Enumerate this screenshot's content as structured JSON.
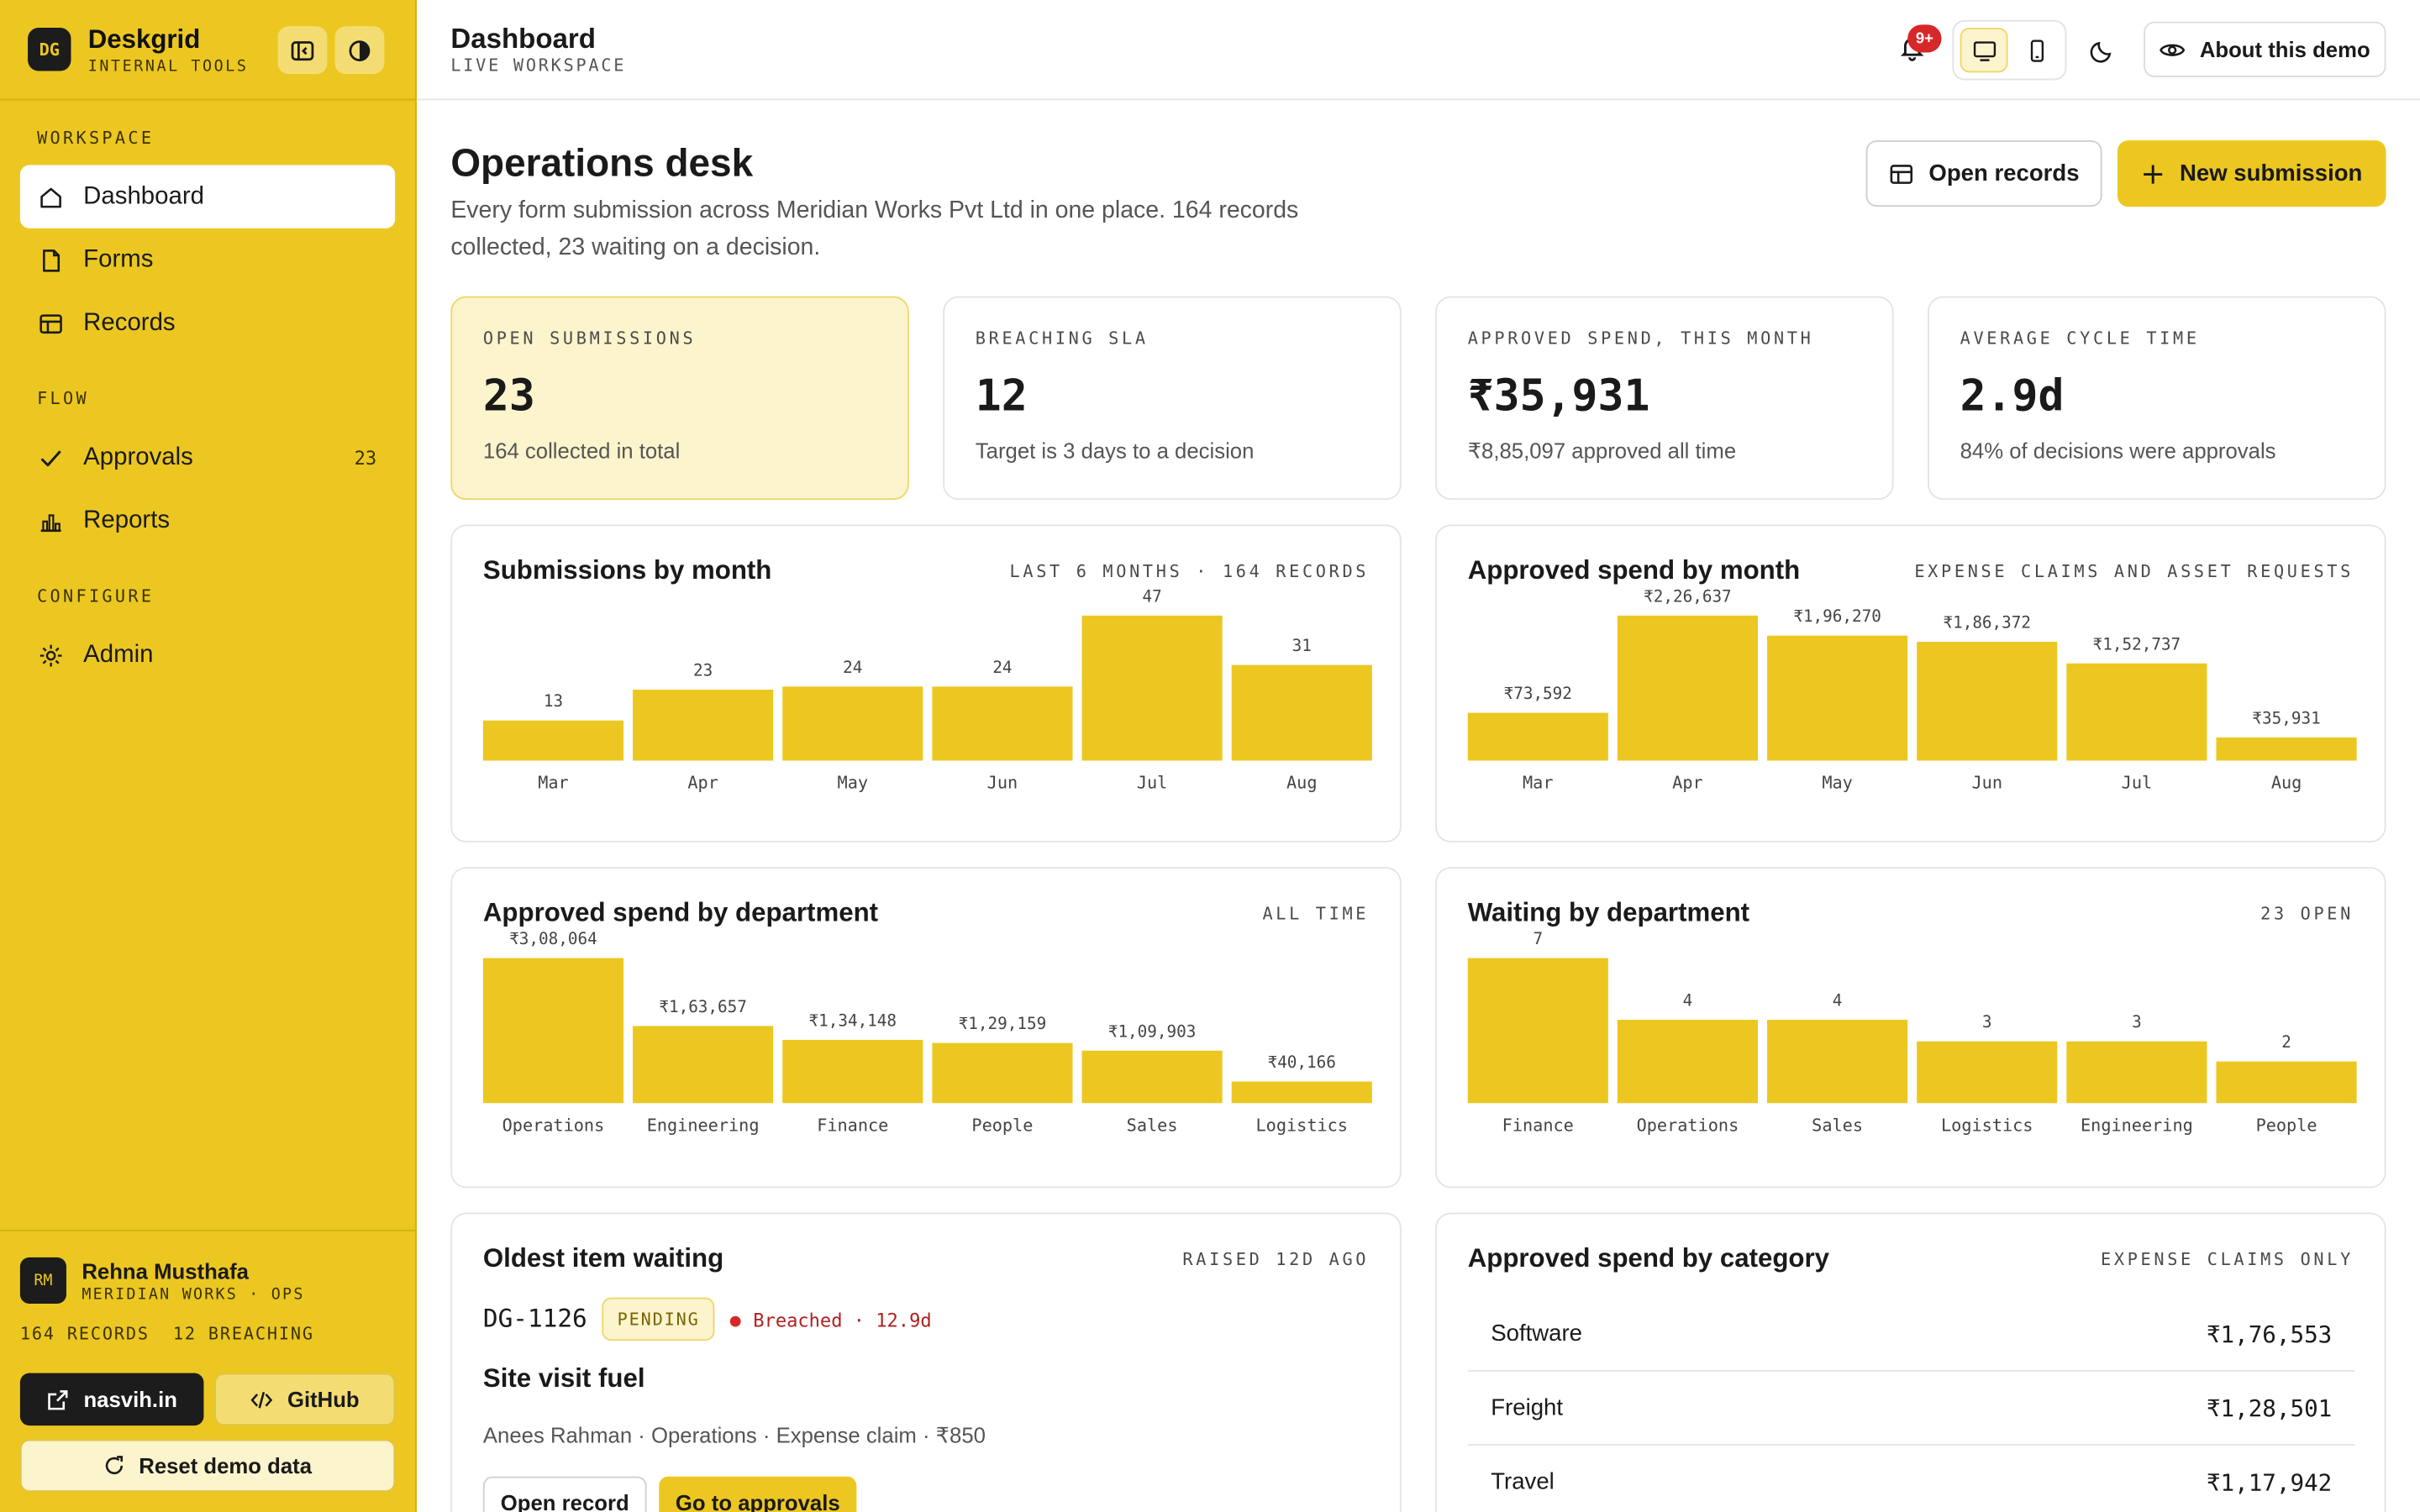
{
  "brand": {
    "logo": "DG",
    "name": "Deskgrid",
    "subtitle": "INTERNAL TOOLS"
  },
  "sidebar": {
    "sections": {
      "workspace": "WORKSPACE",
      "flow": "FLOW",
      "configure": "CONFIGURE"
    },
    "items": [
      {
        "label": "Dashboard",
        "icon": "home-icon",
        "active": true
      },
      {
        "label": "Forms",
        "icon": "file-icon"
      },
      {
        "label": "Records",
        "icon": "table-icon"
      },
      {
        "label": "Approvals",
        "icon": "check-icon",
        "count": "23"
      },
      {
        "label": "Reports",
        "icon": "bar-chart-icon"
      },
      {
        "label": "Admin",
        "icon": "gear-icon"
      }
    ],
    "user": {
      "initials": "RM",
      "name": "Rehna Musthafa",
      "org": "MERIDIAN WORKS · OPS",
      "stats": "164 RECORDS  12 BREACHING"
    },
    "buttons": {
      "site": "nasvih.in",
      "github": "GitHub",
      "reset": "Reset demo data"
    }
  },
  "header": {
    "title": "Dashboard",
    "subtitle": "LIVE WORKSPACE",
    "notification_badge": "9+",
    "about": "About this demo"
  },
  "page": {
    "title": "Operations desk",
    "description": "Every form submission across Meridian Works Pvt Ltd in one place. 164 records collected, 23 waiting on a decision.",
    "open_records": "Open records",
    "new_submission": "New submission"
  },
  "kpis": [
    {
      "label": "OPEN SUBMISSIONS",
      "value": "23",
      "note": "164 collected in total"
    },
    {
      "label": "BREACHING SLA",
      "value": "12",
      "note": "Target is 3 days to a decision"
    },
    {
      "label": "APPROVED SPEND, THIS MONTH",
      "value": "₹35,931",
      "note": "₹8,85,097 approved all time"
    },
    {
      "label": "AVERAGE CYCLE TIME",
      "value": "2.9d",
      "note": "84% of decisions were approvals"
    }
  ],
  "chart_data": [
    {
      "type": "bar",
      "title": "Submissions by month",
      "subtitle": "LAST 6 MONTHS · 164 RECORDS",
      "categories": [
        "Mar",
        "Apr",
        "May",
        "Jun",
        "Jul",
        "Aug"
      ],
      "values": [
        13,
        23,
        24,
        24,
        47,
        31
      ],
      "labels": [
        "13",
        "23",
        "24",
        "24",
        "47",
        "31"
      ]
    },
    {
      "type": "bar",
      "title": "Approved spend by month",
      "subtitle": "EXPENSE CLAIMS AND ASSET REQUESTS",
      "categories": [
        "Mar",
        "Apr",
        "May",
        "Jun",
        "Jul",
        "Aug"
      ],
      "values": [
        73592,
        226637,
        196270,
        186372,
        152737,
        35931
      ],
      "labels": [
        "₹73,592",
        "₹2,26,637",
        "₹1,96,270",
        "₹1,86,372",
        "₹1,52,737",
        "₹35,931"
      ]
    },
    {
      "type": "bar",
      "title": "Approved spend by department",
      "subtitle": "ALL TIME",
      "categories": [
        "Operations",
        "Engineering",
        "Finance",
        "People",
        "Sales",
        "Logistics"
      ],
      "values": [
        308064,
        163657,
        134148,
        129159,
        109903,
        40166
      ],
      "labels": [
        "₹3,08,064",
        "₹1,63,657",
        "₹1,34,148",
        "₹1,29,159",
        "₹1,09,903",
        "₹40,166"
      ]
    },
    {
      "type": "bar",
      "title": "Waiting by department",
      "subtitle": "23 OPEN",
      "categories": [
        "Finance",
        "Operations",
        "Sales",
        "Logistics",
        "Engineering",
        "People"
      ],
      "values": [
        7,
        4,
        4,
        3,
        3,
        2
      ],
      "labels": [
        "7",
        "4",
        "4",
        "3",
        "3",
        "2"
      ]
    }
  ],
  "oldest": {
    "title": "Oldest item waiting",
    "meta": "RAISED 12D AGO",
    "id": "DG-1126",
    "status": "PENDING",
    "breach": "Breached · 12.9d",
    "item_title": "Site visit fuel",
    "details": "Anees Rahman · Operations · Expense claim · ₹850",
    "open_record": "Open record",
    "go_approvals": "Go to approvals"
  },
  "categories": {
    "title": "Approved spend by category",
    "meta": "EXPENSE CLAIMS ONLY",
    "rows": [
      {
        "name": "Software",
        "amount": "₹1,76,553"
      },
      {
        "name": "Freight",
        "amount": "₹1,28,501"
      },
      {
        "name": "Travel",
        "amount": "₹1,17,942"
      }
    ]
  },
  "colors": {
    "accent": "#ecc721",
    "danger": "#d62828",
    "dark": "#1c1c1c"
  }
}
